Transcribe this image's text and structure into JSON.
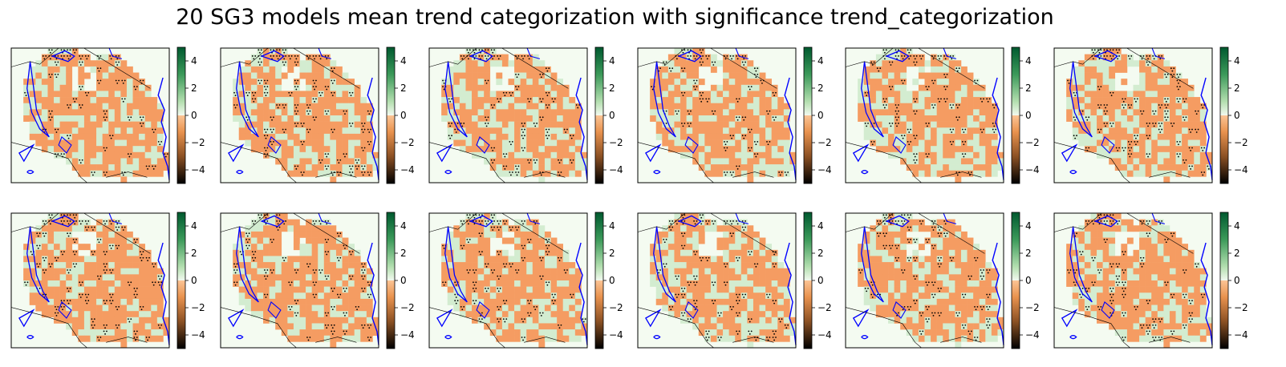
{
  "title": "20 SG3 models mean trend categorization with significance trend_categorization",
  "chart_data": {
    "type": "heatmap",
    "title": "20 SG3 models mean trend categorization with significance trend_categorization",
    "grid": {
      "rows": 2,
      "cols": 6
    },
    "colorbar": {
      "range": [
        -5,
        5
      ],
      "ticks": [
        4,
        2,
        0,
        -2,
        -4
      ],
      "tick_labels": [
        "4",
        "2",
        "0",
        "−2",
        "−4"
      ],
      "colormap": "BrBG-like (dark brown at −5, orange below 0, pale green above 0, dark green at 5)"
    },
    "colors": {
      "negative_category": "#f59c62",
      "positive_category": "#d3ecd0",
      "background": "#f4fbf1",
      "coastline": "#0000ff",
      "border": "#000000"
    },
    "panels": [
      {
        "index": 1,
        "seed": 11
      },
      {
        "index": 2,
        "seed": 23
      },
      {
        "index": 3,
        "seed": 37
      },
      {
        "index": 4,
        "seed": 41
      },
      {
        "index": 5,
        "seed": 53
      },
      {
        "index": 6,
        "seed": 67
      },
      {
        "index": 7,
        "seed": 71
      },
      {
        "index": 8,
        "seed": 83
      },
      {
        "index": 9,
        "seed": 97
      },
      {
        "index": 10,
        "seed": 101
      },
      {
        "index": 11,
        "seed": 113
      },
      {
        "index": 12,
        "seed": 127
      }
    ],
    "significance_marker": "stippled dots on significant cells"
  }
}
